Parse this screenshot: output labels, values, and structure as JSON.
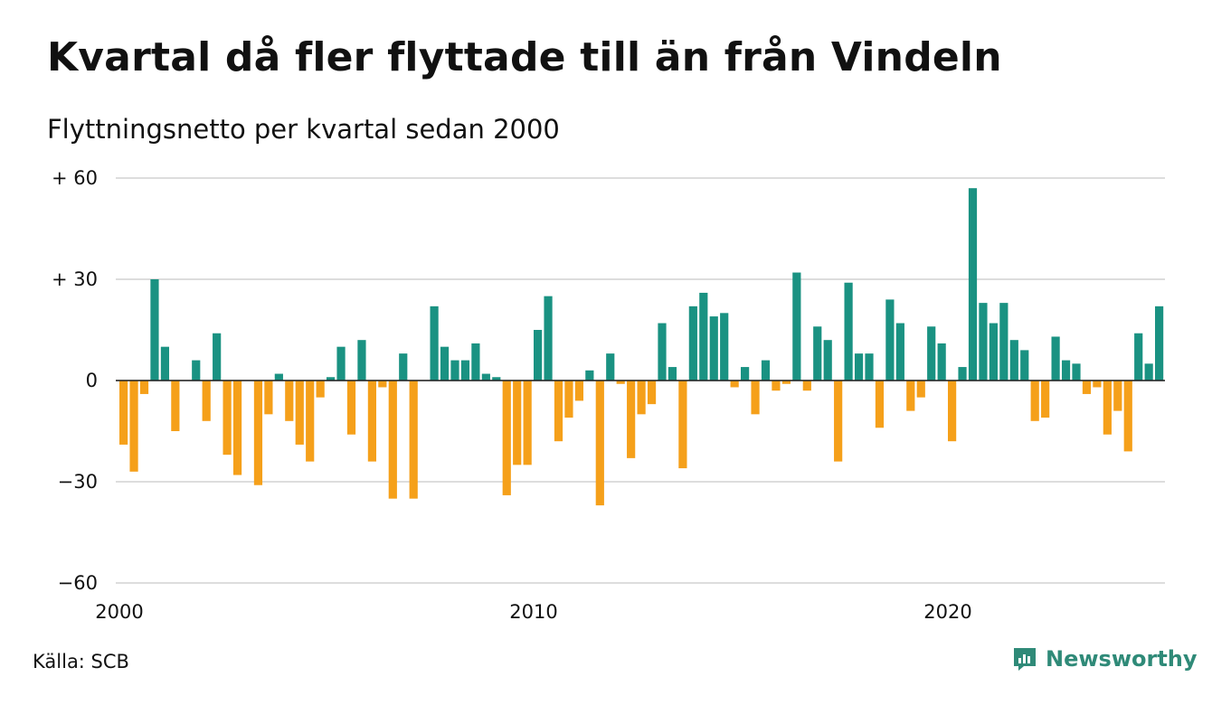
{
  "title": "Kvartal då fler flyttade till än från Vindeln",
  "subtitle": "Flyttningsnetto per kvartal sedan 2000",
  "source": "Källa: SCB",
  "brand": {
    "name": "Newsworthy",
    "icon": "newsworthy-logo-icon"
  },
  "colors": {
    "positive": "#1a9282",
    "negative": "#f5a01a",
    "grid": "#dddddd",
    "brand": "#2f8a78"
  },
  "chart_data": {
    "type": "bar",
    "xlabel": "",
    "ylabel": "",
    "ylim": [
      -60,
      60
    ],
    "grid": true,
    "y_ticks": [
      60,
      30,
      0,
      -30,
      -60
    ],
    "y_tick_labels": [
      "+ 60",
      "+ 30",
      "0",
      "−30",
      "−60"
    ],
    "x_tick_labels": [
      "2000",
      "2010",
      "2020"
    ],
    "start": "2000 Q1",
    "values": [
      -19,
      -27,
      -4,
      30,
      10,
      -15,
      0,
      6,
      -12,
      14,
      -22,
      -28,
      0,
      -31,
      -10,
      2,
      -12,
      -19,
      -24,
      -5,
      1,
      10,
      -16,
      12,
      -24,
      -2,
      -35,
      8,
      -35,
      0,
      22,
      10,
      6,
      6,
      11,
      2,
      1,
      -34,
      -25,
      -25,
      15,
      25,
      -18,
      -11,
      -6,
      3,
      -37,
      8,
      -1,
      -23,
      -10,
      -7,
      17,
      4,
      -26,
      22,
      26,
      19,
      20,
      -2,
      4,
      -10,
      6,
      -3,
      -1,
      32,
      -3,
      16,
      12,
      -24,
      29,
      8,
      8,
      -14,
      24,
      17,
      -9,
      -5,
      16,
      11,
      -18,
      4,
      57,
      23,
      17,
      23,
      12,
      9,
      -12,
      -11,
      13,
      6,
      5,
      -4,
      -2,
      -16,
      -9,
      -21,
      14,
      5,
      22
    ]
  }
}
